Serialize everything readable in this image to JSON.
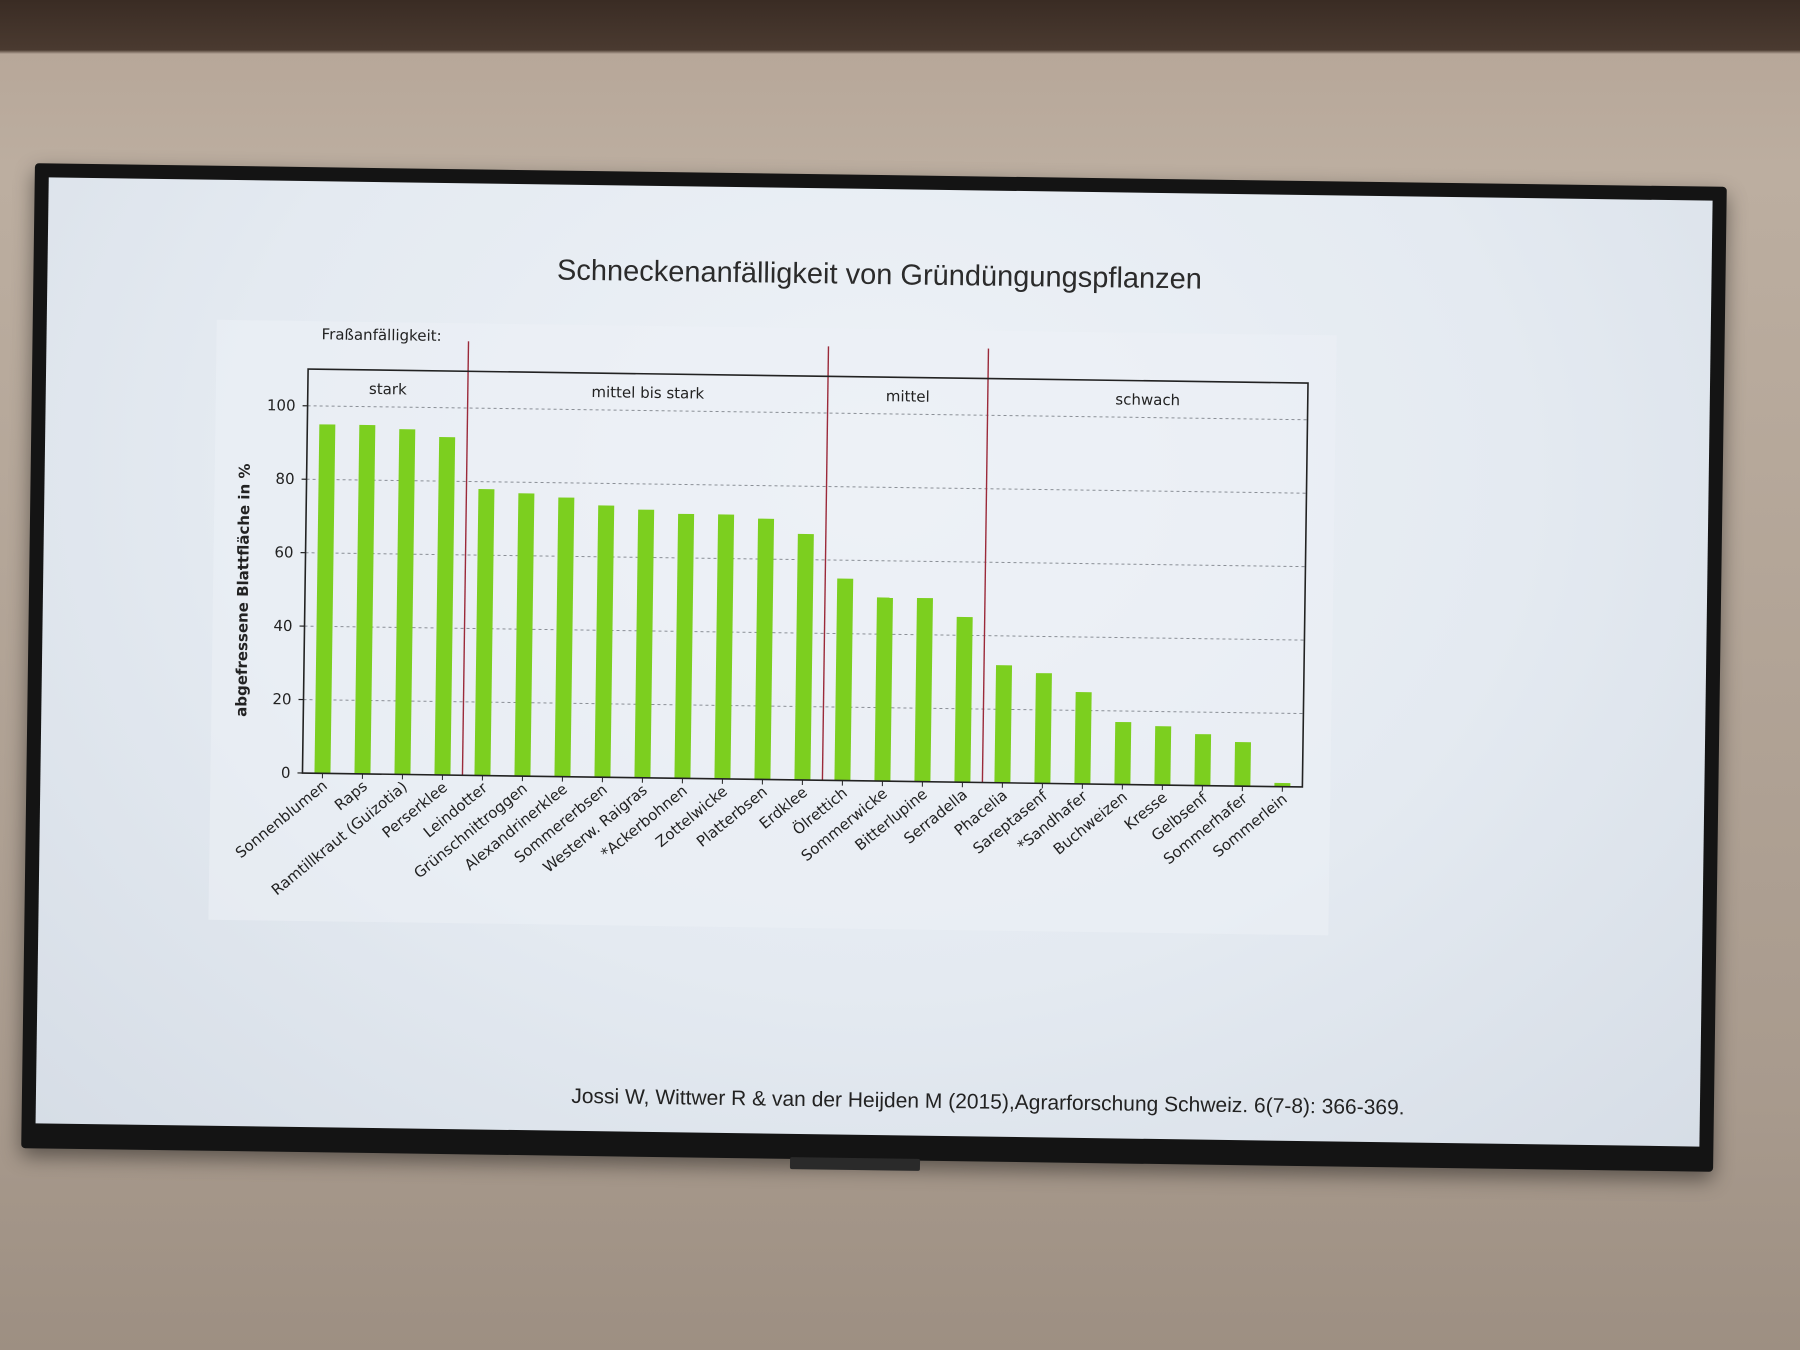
{
  "slide": {
    "title": "Schneckenanfälligkeit von Gründüngungspflanzen",
    "citation": "Jossi W, Wittwer R & van der Heijden M (2015),Agrarforschung Schweiz. 6(7-8): 366-369."
  },
  "chart_data": {
    "type": "bar",
    "title": "",
    "ylabel": "abgefressene Blattfläche  in %",
    "xlabel": "",
    "ylim": [
      0,
      110
    ],
    "yticks": [
      0,
      20,
      40,
      60,
      80,
      100
    ],
    "grid": true,
    "bar_color": "#7ccf1f",
    "group_line_color": "#9b2a3a",
    "category_header_label": "Fraßanfälligkeit:",
    "categories": [
      "Sonnenblumen",
      "Raps",
      "Ramtillkraut (Guizotia)",
      "Perserklee",
      "Leindotter",
      "Grünschnittroggen",
      "Alexandrinerklee",
      "Sommererbsen",
      "Westerw. Raigras",
      "*Ackerbohnen",
      "Zottelwicke",
      "Platterbsen",
      "Erdklee",
      "Ölrettich",
      "Sommerwicke",
      "Bitterlupine",
      "Serradella",
      "Phacelia",
      "Sareptasenf",
      "*Sandhafer",
      "Buchweizen",
      "Kresse",
      "Gelbsenf",
      "Sommerhafer",
      "Sommerlein"
    ],
    "values": [
      95,
      95,
      94,
      92,
      78,
      77,
      76,
      74,
      73,
      72,
      72,
      71,
      67,
      55,
      50,
      50,
      45,
      32,
      30,
      25,
      17,
      16,
      14,
      12,
      1
    ],
    "groups": [
      {
        "label": "stark",
        "start": 0,
        "end": 3
      },
      {
        "label": "mittel bis stark",
        "start": 4,
        "end": 12
      },
      {
        "label": "mittel",
        "start": 13,
        "end": 16
      },
      {
        "label": "schwach",
        "start": 17,
        "end": 24
      }
    ]
  }
}
